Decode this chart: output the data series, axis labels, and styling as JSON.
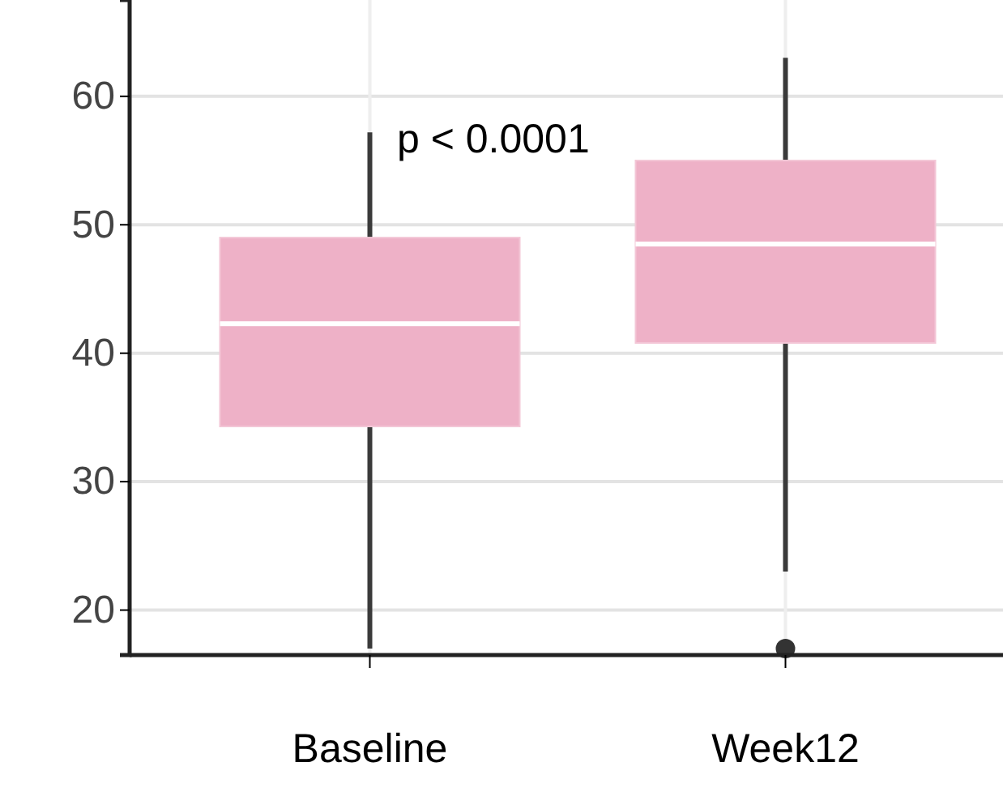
{
  "chart_data": {
    "type": "box",
    "categories": [
      "Baseline",
      "Week12"
    ],
    "boxes": [
      {
        "low": 17,
        "q1": 34.3,
        "median": 42.3,
        "q3": 49,
        "high": 57.2
      },
      {
        "low": 23,
        "q1": 40.8,
        "median": 48.5,
        "q3": 55,
        "high": 63,
        "outliers": [
          17
        ]
      }
    ],
    "color": "#eeb1c7",
    "ylim": [
      16.5,
      67.5
    ],
    "yticks": [
      20,
      30,
      40,
      50,
      60
    ],
    "grid": true,
    "annotations": [
      "p < 0.0001"
    ]
  }
}
